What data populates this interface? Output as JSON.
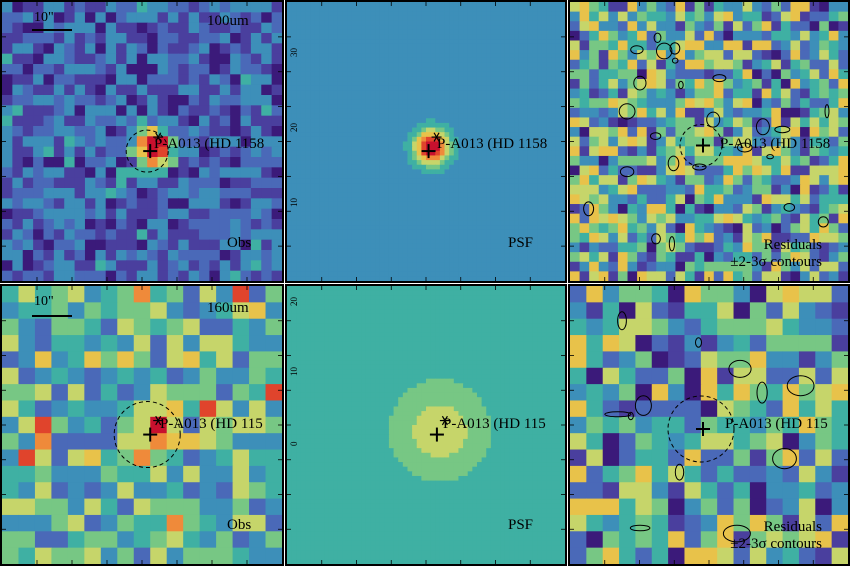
{
  "panels": [
    {
      "id": "p1",
      "band_label": "100um",
      "scale_label": "10\"",
      "source_label": "P-A013 (HD 1158",
      "type_label": "Obs",
      "kind": "obs",
      "seed": 11,
      "grid": 27,
      "peak": [
        0.54,
        0.52
      ],
      "peak_strength": 0.95,
      "blob_sigma": 0.045
    },
    {
      "id": "p2",
      "source_label": "P-A013 (HD 1158",
      "type_label": "PSF",
      "kind": "psf",
      "seed": 0,
      "grid": 60,
      "peak": [
        0.52,
        0.52
      ],
      "peak_strength": 1.0,
      "blob_sigma": 0.07
    },
    {
      "id": "p3",
      "source_label": "P-A013 (HD 1158",
      "type_label_line1": "Residuals",
      "type_label_line2": "±2-3σ contours",
      "kind": "res",
      "seed": 23,
      "grid": 29,
      "peak": [
        0.5,
        0.5
      ],
      "peak_strength": 0,
      "blob_sigma": 0.05
    },
    {
      "id": "p4",
      "band_label": "160um",
      "scale_label": "10\"",
      "source_label": "P-A013 (HD 115",
      "type_label": "Obs",
      "kind": "obs160",
      "seed": 37,
      "grid": 17,
      "peak": [
        0.54,
        0.52
      ],
      "peak_strength": 0.55,
      "blob_sigma": 0.06
    },
    {
      "id": "p5",
      "source_label": "P-A013 (HD 115",
      "type_label": "PSF",
      "kind": "psf160",
      "seed": 0,
      "grid": 60,
      "peak": [
        0.55,
        0.52
      ],
      "peak_strength": 0.8,
      "blob_sigma": 0.09
    },
    {
      "id": "p6",
      "source_label": "P-A013 (HD 115",
      "type_label_line1": "Residuals",
      "type_label_line2": "±2-3σ contours",
      "kind": "res160",
      "seed": 51,
      "grid": 17,
      "peak": [
        0.5,
        0.5
      ],
      "peak_strength": 0,
      "blob_sigma": 0.05
    }
  ],
  "axis_tick_labels_p2": [
    "30",
    "20",
    "10"
  ],
  "axis_tick_labels_p5": [
    "20",
    "10",
    "0"
  ],
  "colormap": [
    "#3b1a7a",
    "#4a3f9e",
    "#4a69b8",
    "#3d8fb9",
    "#3fb0a3",
    "#77c784",
    "#c6d56a",
    "#e8c24a",
    "#ef8a3a",
    "#e0442c",
    "#c8102e"
  ]
}
